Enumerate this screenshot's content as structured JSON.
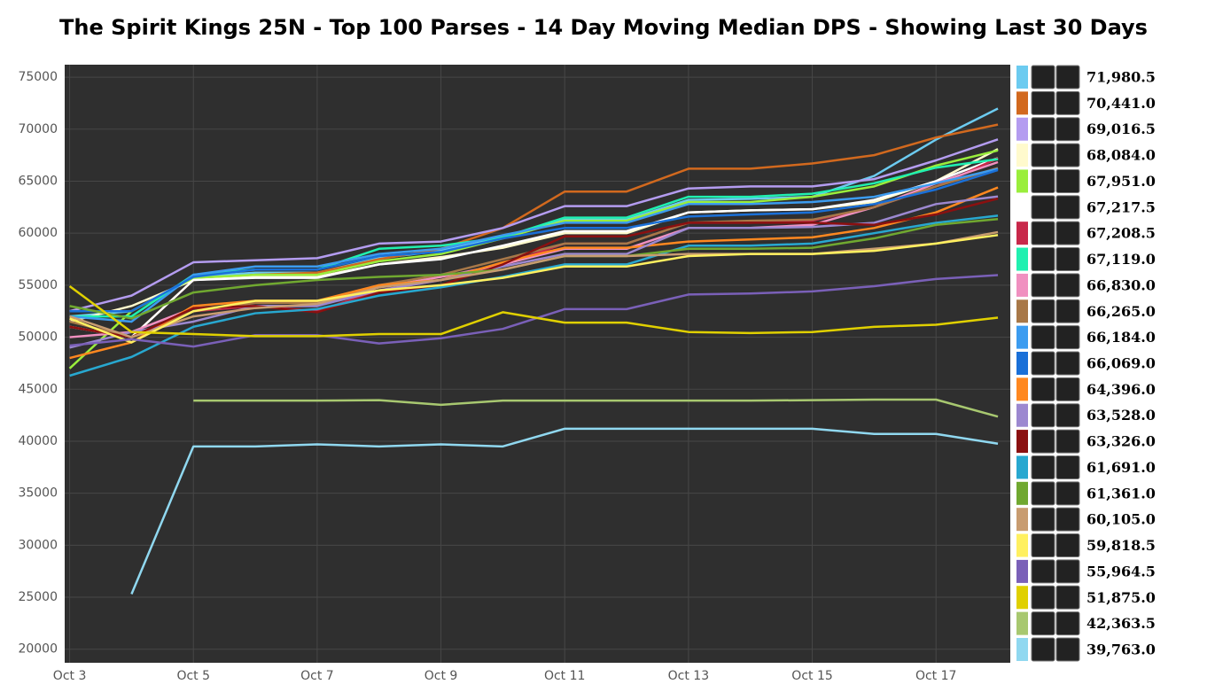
{
  "chart_data": {
    "type": "line",
    "title": "The Spirit Kings 25N - Top 100 Parses - 14 Day Moving Median DPS - Showing Last 30 Days",
    "x": [
      3,
      4,
      5,
      6,
      7,
      8,
      9,
      10,
      11,
      12,
      13,
      14,
      15,
      16,
      17,
      18
    ],
    "xlim": [
      2.92,
      18.2
    ],
    "xticks": [
      {
        "value": 3,
        "label": "Oct 3"
      },
      {
        "value": 5,
        "label": "Oct 5"
      },
      {
        "value": 7,
        "label": "Oct 7"
      },
      {
        "value": 9,
        "label": "Oct 9"
      },
      {
        "value": 11,
        "label": "Oct 11"
      },
      {
        "value": 13,
        "label": "Oct 13"
      },
      {
        "value": 15,
        "label": "Oct 15"
      },
      {
        "value": 17,
        "label": "Oct 17"
      }
    ],
    "ylim": [
      18700,
      76200
    ],
    "yticks": [
      20000,
      25000,
      30000,
      35000,
      40000,
      45000,
      50000,
      55000,
      60000,
      65000,
      70000,
      75000
    ],
    "grid": true,
    "legend": "right",
    "series": [
      {
        "name": "71,980.5",
        "color": "#6ccbf0",
        "values": [
          52000,
          52500,
          55800,
          56200,
          56200,
          57600,
          58300,
          59600,
          61300,
          61300,
          63200,
          63300,
          63500,
          65500,
          69000,
          71980.5
        ]
      },
      {
        "name": "70,441.0",
        "color": "#d2691e",
        "values": [
          51000,
          50000,
          55500,
          56000,
          56200,
          57500,
          58500,
          60500,
          64000,
          64000,
          66200,
          66200,
          66700,
          67500,
          69200,
          70441.0
        ]
      },
      {
        "name": "69,016.5",
        "color": "#b49cf0",
        "values": [
          52500,
          54000,
          57200,
          57400,
          57600,
          59000,
          59200,
          60500,
          62600,
          62600,
          64300,
          64500,
          64500,
          65200,
          67000,
          69016.5
        ]
      },
      {
        "name": "68,084.0",
        "color": "#fffacd",
        "values": [
          51500,
          53000,
          55500,
          55800,
          55800,
          57000,
          57700,
          58600,
          60000,
          60000,
          62000,
          62200,
          62300,
          63000,
          65000,
          68084.0
        ]
      },
      {
        "name": "67,951.0",
        "color": "#9aee3c",
        "values": [
          47000,
          52500,
          55700,
          56000,
          56000,
          57300,
          58000,
          59500,
          61200,
          61200,
          63000,
          63000,
          63500,
          64500,
          66500,
          67951.0
        ]
      },
      {
        "name": "67,217.5",
        "color": "#ffffff",
        "values": [
          51000,
          50000,
          55500,
          55700,
          55700,
          57000,
          57500,
          58800,
          60200,
          60200,
          62000,
          62200,
          62300,
          63200,
          65000,
          67217.5
        ]
      },
      {
        "name": "67,208.5",
        "color": "#c8284a",
        "values": [
          51000,
          50000,
          52500,
          53000,
          52500,
          54500,
          55500,
          57000,
          59000,
          59000,
          61000,
          61000,
          61200,
          62500,
          64500,
          67208.5
        ]
      },
      {
        "name": "67,119.0",
        "color": "#20f0b0",
        "values": [
          52000,
          52000,
          56000,
          56500,
          56500,
          58500,
          58800,
          59600,
          61500,
          61500,
          63500,
          63500,
          63800,
          64800,
          66300,
          67119.0
        ]
      },
      {
        "name": "66,830.0",
        "color": "#f090c0",
        "values": [
          50000,
          50500,
          52800,
          53000,
          53000,
          54800,
          55800,
          57000,
          58500,
          58500,
          60500,
          60500,
          60800,
          62500,
          64800,
          66830.0
        ]
      },
      {
        "name": "66,265.0",
        "color": "#a87848",
        "values": [
          51500,
          50000,
          52500,
          53300,
          53300,
          55000,
          56000,
          57500,
          59000,
          59000,
          61000,
          61200,
          61300,
          62500,
          64500,
          66265.0
        ]
      },
      {
        "name": "66,184.0",
        "color": "#3c9cf0",
        "values": [
          52000,
          51500,
          56000,
          56800,
          56800,
          58000,
          58500,
          59800,
          61000,
          61000,
          62800,
          62800,
          63000,
          63500,
          64800,
          66184.0
        ]
      },
      {
        "name": "66,069.0",
        "color": "#1a70d8",
        "values": [
          52500,
          52500,
          55800,
          56500,
          56500,
          57800,
          58200,
          59500,
          60500,
          60500,
          61600,
          61800,
          62000,
          62800,
          64200,
          66069.0
        ]
      },
      {
        "name": "64,396.0",
        "color": "#ff8820",
        "values": [
          48000,
          49500,
          53000,
          53500,
          53500,
          55000,
          55500,
          57200,
          58600,
          58600,
          59200,
          59400,
          59600,
          60500,
          62000,
          64396.0
        ]
      },
      {
        "name": "63,528.0",
        "color": "#9c88d0",
        "values": [
          49000,
          50500,
          51500,
          53000,
          53000,
          54500,
          55500,
          56800,
          58000,
          58000,
          60500,
          60500,
          60600,
          61000,
          62800,
          63528.0
        ]
      },
      {
        "name": "63,326.0",
        "color": "#8b1010",
        "values": [
          51000,
          50000,
          52800,
          53000,
          52400,
          54300,
          55000,
          57000,
          59700,
          59700,
          61000,
          61000,
          61000,
          60800,
          61800,
          63326.0
        ]
      },
      {
        "name": "61,691.0",
        "color": "#28a8d0",
        "values": [
          46300,
          48100,
          51000,
          52300,
          52700,
          54000,
          54800,
          55800,
          57000,
          57000,
          58800,
          58800,
          59000,
          60000,
          61000,
          61691.0
        ]
      },
      {
        "name": "61,361.0",
        "color": "#70a830",
        "values": [
          53000,
          51800,
          54300,
          55000,
          55500,
          55800,
          56000,
          56500,
          57800,
          57800,
          58500,
          58500,
          58600,
          59500,
          60800,
          61361.0
        ]
      },
      {
        "name": "60,105.0",
        "color": "#c89c70",
        "values": [
          52000,
          50000,
          52000,
          52800,
          53200,
          54800,
          55500,
          56500,
          57800,
          57800,
          58000,
          58000,
          58000,
          58500,
          59000,
          60105.0
        ]
      },
      {
        "name": "59,818.5",
        "color": "#fff060",
        "values": [
          51800,
          49500,
          52500,
          53500,
          53500,
          54500,
          55000,
          55700,
          56800,
          56800,
          57800,
          58000,
          58000,
          58300,
          59000,
          59818.5
        ]
      },
      {
        "name": "55,964.5",
        "color": "#7a60b8",
        "values": [
          49200,
          49800,
          49100,
          50200,
          50200,
          49400,
          49900,
          50800,
          52700,
          52700,
          54100,
          54200,
          54400,
          54900,
          55600,
          55964.5
        ]
      },
      {
        "name": "51,875.0",
        "color": "#e0d000",
        "values": [
          54900,
          50500,
          50300,
          50100,
          50100,
          50300,
          50300,
          52400,
          51400,
          51400,
          50500,
          50400,
          50500,
          51000,
          51200,
          51875.0
        ]
      },
      {
        "name": "42,363.5",
        "color": "#a8c870",
        "values": [
          null,
          null,
          43900,
          43900,
          43900,
          43950,
          43500,
          43900,
          43900,
          43900,
          43900,
          43900,
          43950,
          44000,
          44000,
          42363.5
        ]
      },
      {
        "name": "39,763.0",
        "color": "#90d8f0",
        "values": [
          null,
          25300,
          39500,
          39500,
          39700,
          39500,
          39700,
          39500,
          41200,
          41200,
          41200,
          41200,
          41200,
          40700,
          40700,
          39763.0
        ]
      }
    ]
  }
}
